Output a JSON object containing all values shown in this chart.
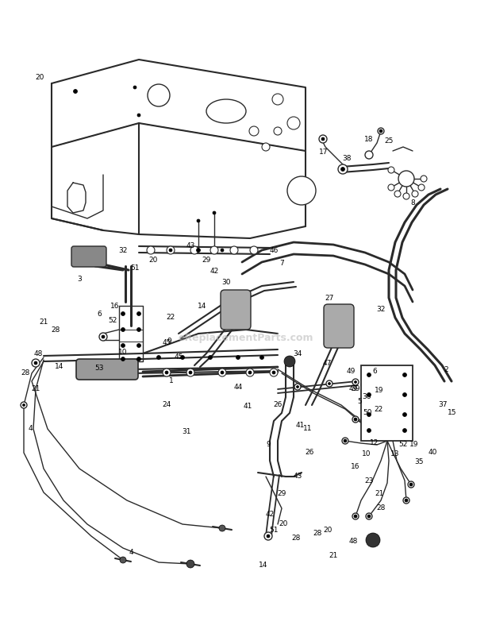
{
  "bg_color": "#ffffff",
  "line_color": "#2a2a2a",
  "label_color": "#000000",
  "watermark": "eReplacementParts.com",
  "watermark_color": "#bbbbbb",
  "fig_width": 6.2,
  "fig_height": 8.02,
  "dpi": 100
}
